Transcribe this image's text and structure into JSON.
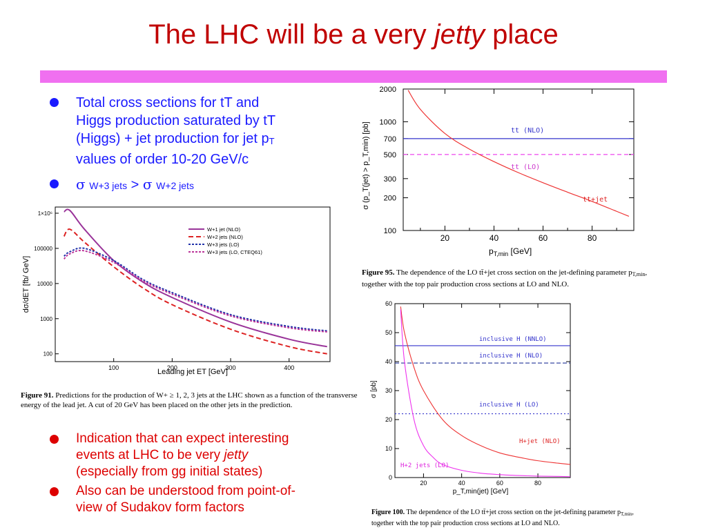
{
  "title": {
    "pre": "The LHC will be a very ",
    "em": "jetty",
    "post": " place"
  },
  "bullets_top": [
    {
      "line1": "Total cross sections for tT and",
      "line2": "Higgs production saturated by tT",
      "line3a": "(Higgs) + jet production for jet p",
      "line3sub": "T",
      "line4": "values of order 10-20 GeV/c"
    },
    {
      "sigma": "σ",
      "sub1": "W+3 jets",
      "gt": " > ",
      "sub2": "W+2 jets"
    }
  ],
  "bullets_bottom": [
    {
      "a": "Indication that can expect interesting",
      "b": "events at LHC to be very ",
      "b_em": "jetty",
      "c": "(especially from gg initial states)"
    },
    {
      "a": "Also can be understood from point-of-",
      "b": "view of Sudakov form factors"
    }
  ],
  "fig91": {
    "caption_bold": "Figure 91.",
    "caption": "Predictions for the production of W+ ≥ 1, 2, 3 jets at the LHC shown as a function of the transverse energy of the lead jet. A cut of 20 GeV has been placed on the other jets in the prediction.",
    "xlabel": "Leading jet ET [GeV]",
    "ylabel": "dσ/dET [fb/ GeV]",
    "xticks": [
      "100",
      "200",
      "300",
      "400"
    ],
    "yticks": [
      "1×10⁶",
      "100000",
      "10000",
      "1000",
      "100"
    ],
    "legend": [
      "W+1 jet  (NLO)",
      "W+2 jets (NLO)",
      "W+3 jets (LO)",
      "W+3 jets (LO, CTEQ61)"
    ],
    "colors": [
      "#993399",
      "#dd2222",
      "#2233aa",
      "#bb3399"
    ]
  },
  "fig95": {
    "caption_bold": "Figure 95.",
    "caption": "The dependence of the LO tt̄+jet cross section on the jet-defining parameter p",
    "caption_sub": "T,min",
    "caption2": "together with the top pair production cross sections at LO and NLO.",
    "xlabel": "p",
    "xlabel_sub": "T,min",
    "xlabel_unit": " [GeV]",
    "ylabel": "σ (p_T(jet) > p_T,min) [pb]",
    "xticks": [
      "20",
      "40",
      "60",
      "80"
    ],
    "yticks": [
      "2000",
      "1000",
      "700",
      "500",
      "300",
      "200",
      "100"
    ],
    "labels": {
      "nlo": "tt (NLO)",
      "lo": "tt (LO)",
      "ttjet": "tt+jet"
    }
  },
  "fig100": {
    "caption_bold": "Figure 100.",
    "caption": "The dependence of the LO tt̄+jet cross section on the jet-defining parameter p",
    "caption_sub": "T,min",
    "caption2": "together with the top pair production cross sections at LO and NLO.",
    "xlabel": "p_T,min(jet) [GeV]",
    "ylabel": "σ [pb]",
    "xticks": [
      "20",
      "40",
      "60",
      "80"
    ],
    "yticks": [
      "60",
      "50",
      "40",
      "30",
      "20",
      "10",
      "0"
    ],
    "labels": {
      "nnlo": "inclusive H (NNLO)",
      "nlo": "inclusive H (NLO)",
      "lo": "inclusive H (LO)",
      "hjet": "H+jet (NLO)",
      "h2jet": "H+2 jets (LO)"
    }
  },
  "chart_data": [
    {
      "type": "line",
      "title": "",
      "xlabel": "Leading jet ET [GeV]",
      "ylabel": "dσ/dET [fb/ GeV]",
      "ylog": true,
      "xlim": [
        0,
        470
      ],
      "ylim": [
        60,
        1500000
      ],
      "series": [
        {
          "name": "W+1 jet  (NLO)",
          "x": [
            15,
            25,
            50,
            100,
            150,
            200,
            300,
            400,
            465
          ],
          "y": [
            1100000,
            1200000,
            350000,
            45000,
            11000,
            4000,
            800,
            260,
            160
          ]
        },
        {
          "name": "W+2 jets (NLO)",
          "x": [
            15,
            25,
            50,
            100,
            150,
            200,
            300,
            400,
            465
          ],
          "y": [
            220000,
            350000,
            150000,
            30000,
            7500,
            2500,
            500,
            160,
            100
          ]
        },
        {
          "name": "W+3 jets (LO)",
          "x": [
            15,
            25,
            50,
            100,
            150,
            200,
            300,
            400,
            465
          ],
          "y": [
            60000,
            80000,
            100000,
            45000,
            13000,
            5500,
            1300,
            600,
            450
          ]
        },
        {
          "name": "W+3 jets (LO, CTEQ61)",
          "x": [
            15,
            25,
            50,
            100,
            150,
            200,
            300,
            400,
            465
          ],
          "y": [
            50000,
            70000,
            85000,
            40000,
            12000,
            5000,
            1200,
            550,
            420
          ]
        }
      ]
    },
    {
      "type": "line",
      "xlabel": "pT,min [GeV]",
      "ylabel": "σ (pT(jet) > pT,min) [pb]",
      "ylog": true,
      "xlim": [
        3,
        97
      ],
      "ylim": [
        100,
        2000
      ],
      "series": [
        {
          "name": "tt (NLO)",
          "x": [
            3,
            97
          ],
          "y": [
            700,
            700
          ]
        },
        {
          "name": "tt (LO)",
          "x": [
            3,
            97
          ],
          "y": [
            500,
            500
          ]
        },
        {
          "name": "tt+jet",
          "x": [
            5,
            10,
            20,
            30,
            40,
            50,
            60,
            70,
            80,
            90,
            95
          ],
          "y": [
            1950,
            1300,
            780,
            560,
            430,
            340,
            275,
            225,
            185,
            150,
            135
          ]
        }
      ]
    },
    {
      "type": "line",
      "xlabel": "pT,min(jet) [GeV]",
      "ylabel": "σ [pb]",
      "xlim": [
        5,
        97
      ],
      "ylim": [
        0,
        60
      ],
      "series": [
        {
          "name": "inclusive H (NNLO)",
          "x": [
            5,
            97
          ],
          "y": [
            45.5,
            45.5
          ]
        },
        {
          "name": "inclusive H (NLO)",
          "x": [
            5,
            97
          ],
          "y": [
            39.5,
            39.5
          ]
        },
        {
          "name": "inclusive H (LO)",
          "x": [
            5,
            97
          ],
          "y": [
            22,
            22
          ]
        },
        {
          "name": "H+jet (NLO)",
          "x": [
            8,
            10,
            15,
            20,
            30,
            40,
            50,
            60,
            70,
            80,
            90,
            97
          ],
          "y": [
            59,
            50,
            38,
            30,
            20,
            14.5,
            11,
            8.5,
            7,
            5.8,
            5,
            4.5
          ]
        },
        {
          "name": "H+2 jets (LO)",
          "x": [
            8,
            10,
            15,
            20,
            25,
            30,
            40,
            50,
            60,
            70,
            80,
            90,
            97
          ],
          "y": [
            58,
            40,
            20,
            11,
            7,
            4.5,
            2.5,
            1.5,
            1,
            0.7,
            0.5,
            0.4,
            0.3
          ]
        }
      ]
    }
  ]
}
